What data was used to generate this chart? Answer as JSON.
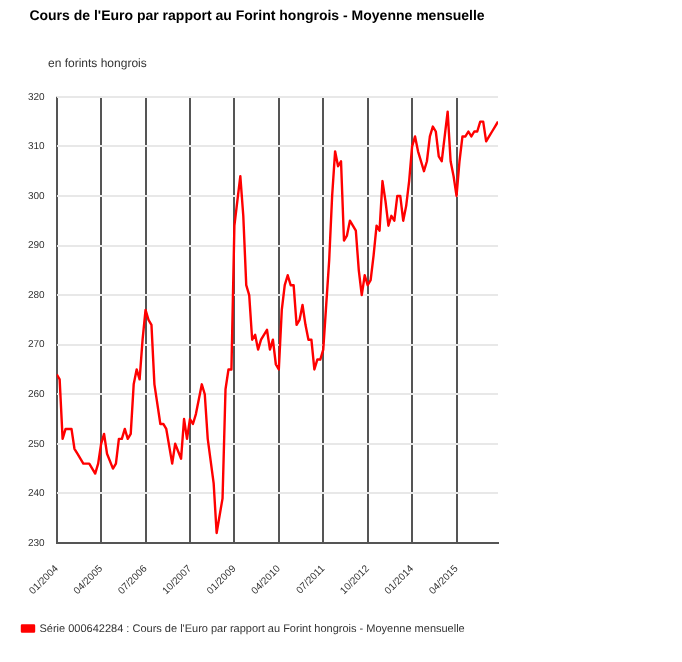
{
  "chart_data": {
    "type": "line",
    "title": "Cours de l'Euro par rapport au Forint hongrois - Moyenne mensuelle",
    "ylabel": "en forints hongrois",
    "xlim": [
      "2004-01",
      "2016-06"
    ],
    "xticks": [
      {
        "value": "2004-01",
        "label": "01/2004"
      },
      {
        "value": "2005-04",
        "label": "04/2005"
      },
      {
        "value": "2006-07",
        "label": "07/2006"
      },
      {
        "value": "2007-10",
        "label": "10/2007"
      },
      {
        "value": "2009-01",
        "label": "01/2009"
      },
      {
        "value": "2010-04",
        "label": "04/2010"
      },
      {
        "value": "2011-07",
        "label": "07/2011"
      },
      {
        "value": "2012-10",
        "label": "10/2012"
      },
      {
        "value": "2014-01",
        "label": "01/2014"
      },
      {
        "value": "2015-04",
        "label": "04/2015"
      }
    ],
    "ylim": [
      230,
      320
    ],
    "yticks": [
      230,
      240,
      250,
      260,
      270,
      280,
      290,
      300,
      310,
      320
    ],
    "grid": true,
    "legend": "bottom",
    "marker": "none",
    "line_style": "solid",
    "x": [
      "2004-01",
      "2004-02",
      "2004-03",
      "2004-04",
      "2004-05",
      "2004-06",
      "2004-07",
      "2004-08",
      "2004-10",
      "2004-12",
      "2005-02",
      "2005-03",
      "2005-04",
      "2005-05",
      "2005-06",
      "2005-08",
      "2005-09",
      "2005-10",
      "2005-11",
      "2005-12",
      "2006-01",
      "2006-02",
      "2006-03",
      "2006-04",
      "2006-05",
      "2006-06",
      "2006-07",
      "2006-08",
      "2006-09",
      "2006-10",
      "2006-12",
      "2007-01",
      "2007-02",
      "2007-04",
      "2007-05",
      "2007-07",
      "2007-08",
      "2007-09",
      "2007-10",
      "2007-11",
      "2007-12",
      "2008-02",
      "2008-03",
      "2008-04",
      "2008-06",
      "2008-07",
      "2008-09",
      "2008-10",
      "2008-11",
      "2008-12",
      "2009-01",
      "2009-03",
      "2009-04",
      "2009-05",
      "2009-06",
      "2009-07",
      "2009-08",
      "2009-09",
      "2009-10",
      "2009-12",
      "2010-01",
      "2010-02",
      "2010-03",
      "2010-04",
      "2010-05",
      "2010-06",
      "2010-07",
      "2010-08",
      "2010-09",
      "2010-10",
      "2010-11",
      "2010-12",
      "2011-01",
      "2011-02",
      "2011-03",
      "2011-04",
      "2011-05",
      "2011-06",
      "2011-07",
      "2011-09",
      "2011-10",
      "2011-11",
      "2011-12",
      "2012-01",
      "2012-02",
      "2012-03",
      "2012-04",
      "2012-05",
      "2012-06",
      "2012-07",
      "2012-08",
      "2012-09",
      "2012-10",
      "2012-11",
      "2012-12",
      "2013-01",
      "2013-02",
      "2013-03",
      "2013-04",
      "2013-05",
      "2013-06",
      "2013-07",
      "2013-08",
      "2013-09",
      "2013-10",
      "2013-11",
      "2013-12",
      "2014-01",
      "2014-02",
      "2014-03",
      "2014-05",
      "2014-06",
      "2014-07",
      "2014-08",
      "2014-09",
      "2014-10",
      "2014-11",
      "2014-12",
      "2015-01",
      "2015-02",
      "2015-03",
      "2015-04",
      "2015-05",
      "2015-06",
      "2015-07",
      "2015-08",
      "2015-09",
      "2015-10",
      "2015-11",
      "2015-12",
      "2016-01",
      "2016-02",
      "2016-03",
      "2016-04",
      "2016-05",
      "2016-06"
    ],
    "series": [
      {
        "name": "Série 000642284 : Cours de l'Euro par rapport au Forint hongrois - Moyenne mensuelle",
        "color": "#ff0000",
        "values": [
          264,
          263,
          251,
          253,
          253,
          253,
          249,
          248,
          246,
          246,
          244,
          246,
          250,
          252,
          248,
          245,
          246,
          251,
          251,
          253,
          251,
          252,
          262,
          265,
          263,
          271,
          277,
          275,
          274,
          262,
          254,
          254,
          253,
          246,
          250,
          247,
          255,
          251,
          255,
          254,
          256,
          262,
          260,
          251,
          242,
          232,
          239,
          261,
          265,
          265,
          294,
          304,
          296,
          282,
          280,
          271,
          272,
          269,
          271,
          273,
          269,
          271,
          266,
          265,
          277,
          282,
          284,
          282,
          282,
          274,
          275,
          278,
          274,
          271,
          271,
          265,
          267,
          267,
          269,
          287,
          300,
          309,
          306,
          307,
          291,
          292,
          295,
          294,
          293,
          285,
          280,
          284,
          282,
          283,
          288,
          294,
          293,
          303,
          299,
          294,
          296,
          295,
          300,
          300,
          295,
          298,
          303,
          310,
          312,
          309,
          305,
          307,
          312,
          314,
          313,
          308,
          307,
          312,
          317,
          307,
          304,
          300,
          307,
          312,
          312,
          313,
          312,
          313,
          313,
          315,
          315,
          311,
          312,
          313,
          314,
          315
        ]
      }
    ]
  }
}
